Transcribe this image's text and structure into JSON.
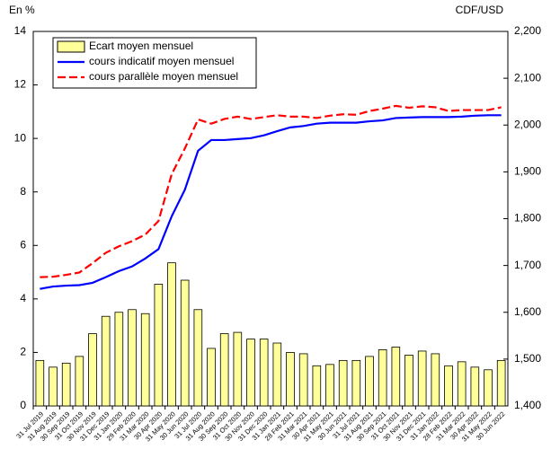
{
  "chart_data": {
    "type": "bar",
    "y_label": "En %",
    "y2_label": "CDF/USD",
    "categories": [
      "31 Jul 2019",
      "31 Aug 2019",
      "30 Sep 2019",
      "31 Oct 2019",
      "30 Nov 2019",
      "31 Dec 2019",
      "31 Jan 2020",
      "29 Feb 2020",
      "31 Mar 2020",
      "30 Apr 2020",
      "31 May 2020",
      "30 Jun 2020",
      "31 Jul 2020",
      "31 Aug 2020",
      "30 Sep 2020",
      "31 Oct 2020",
      "30 Nov 2020",
      "31 Dec 2020",
      "31 Jan 2021",
      "28 Feb 2021",
      "31 Mar 2021",
      "30 Apr 2021",
      "31 May 2021",
      "30 Jun 2021",
      "31 Jul 2021",
      "31 Aug 2021",
      "30 Sep 2021",
      "31 Oct 2021",
      "30 Nov 2021",
      "31 Dec 2021",
      "31 Jan 2022",
      "28 Feb 2022",
      "31 Mar 2022",
      "30 Apr 2022",
      "31 May 2022",
      "30 Jun 2022"
    ],
    "series": [
      {
        "name": "Ecart moyen mensuel",
        "type": "bar",
        "axis": "y",
        "color": "#ffff99",
        "values": [
          1.7,
          1.45,
          1.6,
          1.85,
          2.7,
          3.35,
          3.5,
          3.6,
          3.45,
          4.55,
          5.35,
          4.7,
          3.6,
          2.15,
          2.7,
          2.75,
          2.5,
          2.5,
          2.35,
          2.0,
          1.95,
          1.5,
          1.55,
          1.7,
          1.7,
          1.85,
          2.1,
          2.2,
          1.9,
          2.05,
          1.95,
          1.5,
          1.65,
          1.45,
          1.35,
          1.7
        ]
      },
      {
        "name": "cours indicatif moyen mensuel",
        "type": "line",
        "axis": "y2",
        "color": "#0000ff",
        "line_style": "solid",
        "values": [
          1650,
          1655,
          1657,
          1658,
          1663,
          1675,
          1688,
          1698,
          1715,
          1735,
          1805,
          1862,
          1945,
          1968,
          1968,
          1970,
          1972,
          1978,
          1987,
          1995,
          1998,
          2003,
          2005,
          2005,
          2005,
          2008,
          2010,
          2015,
          2016,
          2017,
          2017,
          2017,
          2018,
          2020,
          2021,
          2021
        ]
      },
      {
        "name": "cours parallèle moyen mensuel",
        "type": "line",
        "axis": "y2",
        "color": "#ff0000",
        "line_style": "dashed",
        "values": [
          1675,
          1676,
          1680,
          1685,
          1705,
          1727,
          1741,
          1752,
          1766,
          1795,
          1895,
          1950,
          2012,
          2003,
          2013,
          2018,
          2013,
          2017,
          2021,
          2018,
          2018,
          2015,
          2020,
          2023,
          2022,
          2030,
          2035,
          2041,
          2037,
          2040,
          2038,
          2030,
          2032,
          2032,
          2032,
          2038
        ]
      }
    ],
    "ylim": [
      0,
      14
    ],
    "yticks": [
      0,
      2,
      4,
      6,
      8,
      10,
      12,
      14
    ],
    "y2lim": [
      1400,
      2200
    ],
    "y2ticks": [
      {
        "value": 1400,
        "label": "1,400"
      },
      {
        "value": 1500,
        "label": "1,500"
      },
      {
        "value": 1600,
        "label": "1,600"
      },
      {
        "value": 1700,
        "label": "1,700"
      },
      {
        "value": 1800,
        "label": "1,800"
      },
      {
        "value": 1900,
        "label": "1,900"
      },
      {
        "value": 2000,
        "label": "2,000"
      },
      {
        "value": 2100,
        "label": "2,100"
      },
      {
        "value": 2200,
        "label": "2,200"
      }
    ],
    "legend": "top-left",
    "grid": false
  }
}
